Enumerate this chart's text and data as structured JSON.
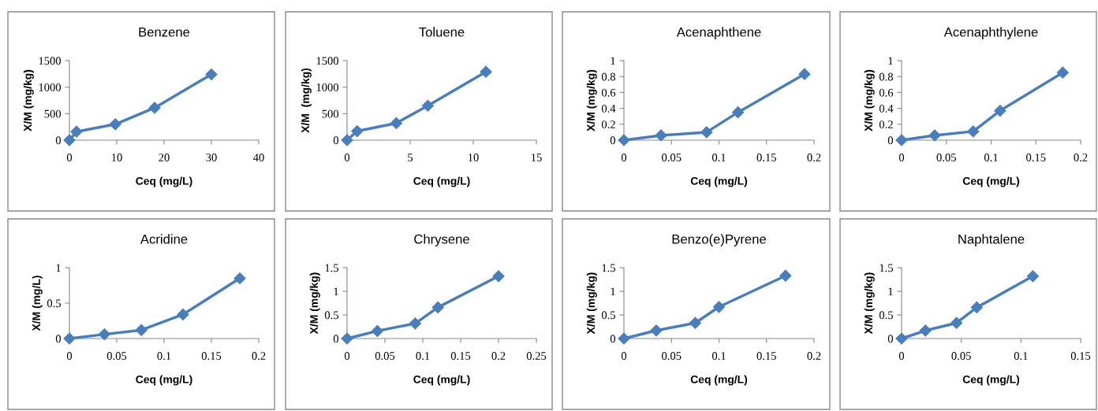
{
  "chart_data": [
    {
      "type": "line",
      "title": "Benzene",
      "xlabel": "Ceq (mg/L)",
      "ylabel": "X/M (mg/kg)",
      "marker": "diamond",
      "line_style": "solid",
      "grid": false,
      "x": [
        0,
        1.5,
        9.7,
        18,
        30
      ],
      "series": [
        {
          "color": "#4a7ebb",
          "values": [
            0,
            160,
            300,
            610,
            1240
          ]
        }
      ],
      "xlim": [
        0,
        40
      ],
      "xticks": [
        0,
        10,
        20,
        30,
        40
      ],
      "ylim": [
        0,
        1500
      ],
      "yticks": [
        0,
        500,
        1000,
        1500
      ]
    },
    {
      "type": "line",
      "title": "Toluene",
      "xlabel": "Ceq (mg/L)",
      "ylabel": "X/M  (mg/kg)",
      "marker": "diamond",
      "line_style": "solid",
      "grid": false,
      "x": [
        0,
        0.8,
        3.9,
        6.4,
        11
      ],
      "series": [
        {
          "color": "#4a7ebb",
          "values": [
            0,
            170,
            320,
            650,
            1290
          ]
        }
      ],
      "xlim": [
        0,
        15
      ],
      "xticks": [
        0,
        5,
        10,
        15
      ],
      "ylim": [
        0,
        1500
      ],
      "yticks": [
        0,
        500,
        1000,
        1500
      ]
    },
    {
      "type": "line",
      "title": "Acenaphthene",
      "xlabel": "Ceq (mg/L)",
      "ylabel": "X/M (mg/kg)",
      "marker": "diamond",
      "line_style": "solid",
      "grid": false,
      "x": [
        0,
        0.039,
        0.087,
        0.12,
        0.19
      ],
      "series": [
        {
          "color": "#4a7ebb",
          "values": [
            0,
            0.06,
            0.1,
            0.35,
            0.83
          ]
        }
      ],
      "xlim": [
        0,
        0.2
      ],
      "xticks": [
        0,
        0.05,
        0.1,
        0.15,
        0.2
      ],
      "ylim": [
        0,
        1
      ],
      "yticks": [
        0,
        0.2,
        0.4,
        0.6,
        0.8,
        1
      ]
    },
    {
      "type": "line",
      "title": "Acenaphthylene",
      "xlabel": "Ceq (mg/L)",
      "ylabel": "X/M (mg/kg)",
      "marker": "diamond",
      "line_style": "solid",
      "grid": false,
      "x": [
        0,
        0.037,
        0.08,
        0.11,
        0.18
      ],
      "series": [
        {
          "color": "#4a7ebb",
          "values": [
            0,
            0.06,
            0.11,
            0.37,
            0.85
          ]
        }
      ],
      "xlim": [
        0,
        0.2
      ],
      "xticks": [
        0,
        0.05,
        0.1,
        0.15,
        0.2
      ],
      "ylim": [
        0,
        1
      ],
      "yticks": [
        0,
        0.2,
        0.4,
        0.6,
        0.8,
        1
      ]
    },
    {
      "type": "line",
      "title": "Acridine",
      "xlabel": "Ceq (mg/L)",
      "ylabel": "X/M (mg/L)",
      "marker": "diamond",
      "line_style": "solid",
      "grid": false,
      "x": [
        0,
        0.037,
        0.076,
        0.12,
        0.18
      ],
      "series": [
        {
          "color": "#4a7ebb",
          "values": [
            0,
            0.06,
            0.12,
            0.34,
            0.85
          ]
        }
      ],
      "xlim": [
        0,
        0.2
      ],
      "xticks": [
        0,
        0.05,
        0.1,
        0.15,
        0.2
      ],
      "ylim": [
        0,
        1
      ],
      "yticks": [
        0,
        0.5,
        1
      ]
    },
    {
      "type": "line",
      "title": "Chrysene",
      "xlabel": "Ceq (mg/L)",
      "ylabel": "X/M (mg/kg)",
      "marker": "diamond",
      "line_style": "solid",
      "grid": false,
      "x": [
        0,
        0.04,
        0.09,
        0.12,
        0.2
      ],
      "series": [
        {
          "color": "#4a7ebb",
          "values": [
            0,
            0.16,
            0.32,
            0.66,
            1.32
          ]
        }
      ],
      "xlim": [
        0,
        0.25
      ],
      "xticks": [
        0,
        0.05,
        0.1,
        0.15,
        0.2,
        0.25
      ],
      "ylim": [
        0,
        1.5
      ],
      "yticks": [
        0,
        0.5,
        1,
        1.5
      ]
    },
    {
      "type": "line",
      "title": "Benzo(e)Pyrene",
      "xlabel": "Ceq (mg/L)",
      "ylabel": "X/M (mg/kg)",
      "marker": "diamond",
      "line_style": "solid",
      "grid": false,
      "x": [
        0,
        0.034,
        0.075,
        0.1,
        0.17
      ],
      "series": [
        {
          "color": "#4a7ebb",
          "values": [
            0,
            0.17,
            0.33,
            0.67,
            1.33
          ]
        }
      ],
      "xlim": [
        0,
        0.2
      ],
      "xticks": [
        0,
        0.05,
        0.1,
        0.15,
        0.2
      ],
      "ylim": [
        0,
        1.5
      ],
      "yticks": [
        0,
        0.5,
        1,
        1.5
      ]
    },
    {
      "type": "line",
      "title": "Naphtalene",
      "xlabel": "Ceq (mg/L)",
      "ylabel": "X/M (mg/kg)",
      "marker": "diamond",
      "line_style": "solid",
      "grid": false,
      "x": [
        0,
        0.02,
        0.046,
        0.063,
        0.11
      ],
      "series": [
        {
          "color": "#4a7ebb",
          "values": [
            0,
            0.17,
            0.33,
            0.66,
            1.32
          ]
        }
      ],
      "xlim": [
        0,
        0.15
      ],
      "xticks": [
        0,
        0.05,
        0.1,
        0.15
      ],
      "ylim": [
        0,
        1.5
      ],
      "yticks": [
        0,
        0.5,
        1,
        1.5
      ]
    }
  ]
}
